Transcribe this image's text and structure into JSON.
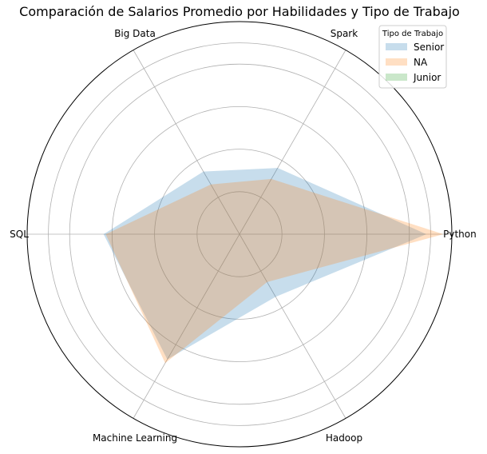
{
  "chart_data": {
    "type": "radar",
    "title": "Comparación de Salarios Promedio por Habilidades y Tipo de Trabajo",
    "categories": [
      "Python",
      "Spark",
      "Big Data",
      "SQL",
      "Machine Learning",
      "Hadoop"
    ],
    "rmax": 1.0,
    "rings": [
      0.2,
      0.4,
      0.6,
      0.8,
      0.9
    ],
    "grid": true,
    "series": [
      {
        "name": "Senior",
        "values": [
          0.88,
          0.36,
          0.34,
          0.64,
          0.68,
          0.34
        ],
        "color": "#1f77b4",
        "alpha": 0.25
      },
      {
        "name": "NA",
        "values": [
          0.96,
          0.3,
          0.27,
          0.63,
          0.7,
          0.26
        ],
        "color": "#ff7f0e",
        "alpha": 0.25
      },
      {
        "name": "Junior",
        "values": [
          0,
          0,
          0,
          0,
          0,
          0
        ],
        "color": "#2ca02c",
        "alpha": 0.25
      }
    ],
    "legend": {
      "title": "Tipo de Trabajo",
      "placement": "top-right"
    }
  }
}
